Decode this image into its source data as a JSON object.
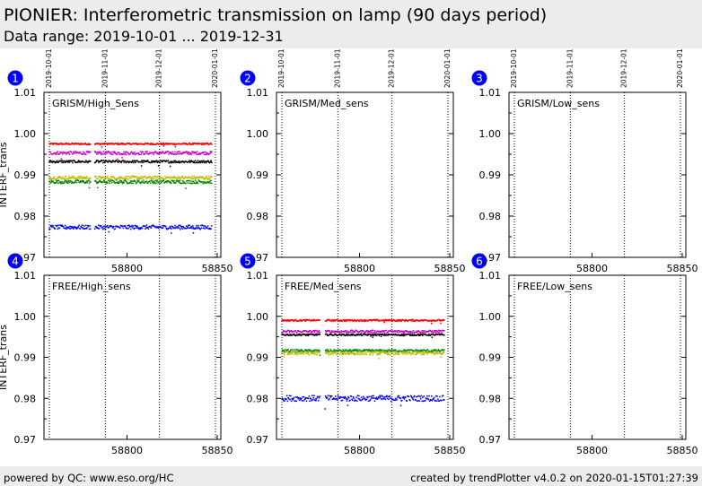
{
  "header": {
    "title": "PIONIER: Interferometric transmission on lamp (90 days period)",
    "subtitle": "Data range: 2019-10-01 ... 2019-12-31"
  },
  "footer": {
    "left": "powered by QC: www.eso.org/HC",
    "right": "created by trendPlotter v4.0.2 on 2020-01-15T01:27:39"
  },
  "colors": {
    "background_band": "#ececec",
    "badge": "#0000ff",
    "red": "#ff0000",
    "magenta": "#cc00cc",
    "black": "#000000",
    "yellow": "#bbbb00",
    "green": "#008800",
    "blue": "#0000ff"
  },
  "chart_data": [
    {
      "panel": "1",
      "type": "scatter",
      "title": "GRISM/High_Sens",
      "ylabel": "INTERF_trans",
      "xlim": [
        58754,
        58852
      ],
      "ylim": [
        0.97,
        1.01
      ],
      "xticks": [
        58800,
        58850
      ],
      "yticks": [
        "0.97",
        "0.98",
        "0.99",
        "1.00",
        "1.01"
      ],
      "date_markers": [
        {
          "mjd": 58757,
          "label": "2019-10-01"
        },
        {
          "mjd": 58788,
          "label": "2019-11-01"
        },
        {
          "mjd": 58818,
          "label": "2019-12-01"
        },
        {
          "mjd": 58849,
          "label": "2020-01-01"
        }
      ],
      "series": [
        {
          "color": "red",
          "x_range": [
            58757,
            58847
          ],
          "level": 0.9975,
          "spread": 0.0002,
          "gaps": [
            [
              58780,
              58782
            ]
          ]
        },
        {
          "color": "magenta",
          "x_range": [
            58757,
            58847
          ],
          "level": 0.9953,
          "spread": 0.0004,
          "gaps": [
            [
              58780,
              58782
            ]
          ]
        },
        {
          "color": "black",
          "x_range": [
            58757,
            58847
          ],
          "level": 0.9932,
          "spread": 0.0003,
          "gaps": [
            [
              58780,
              58782
            ]
          ]
        },
        {
          "color": "yellow",
          "x_range": [
            58757,
            58847
          ],
          "level": 0.9893,
          "spread": 0.0004,
          "gaps": [
            [
              58780,
              58782
            ]
          ]
        },
        {
          "color": "green",
          "x_range": [
            58757,
            58847
          ],
          "level": 0.9883,
          "spread": 0.0004,
          "gaps": [
            [
              58780,
              58782
            ]
          ]
        },
        {
          "color": "blue",
          "x_range": [
            58757,
            58847
          ],
          "level": 0.9773,
          "spread": 0.0005,
          "gaps": [
            [
              58780,
              58782
            ]
          ]
        }
      ]
    },
    {
      "panel": "2",
      "type": "scatter",
      "title": "GRISM/Med_sens",
      "xlim": [
        58754,
        58852
      ],
      "ylim": [
        0.97,
        1.01
      ],
      "xticks": [
        58800,
        58850
      ],
      "yticks": [
        "0.97",
        "0.98",
        "0.99",
        "1.00",
        "1.01"
      ],
      "date_markers": [
        {
          "mjd": 58757,
          "label": "2019-10-01"
        },
        {
          "mjd": 58788,
          "label": "2019-11-01"
        },
        {
          "mjd": 58818,
          "label": "2019-12-01"
        },
        {
          "mjd": 58849,
          "label": "2020-01-01"
        }
      ],
      "series": []
    },
    {
      "panel": "3",
      "type": "scatter",
      "title": "GRISM/Low_sens",
      "xlim": [
        58754,
        58852
      ],
      "ylim": [
        0.97,
        1.01
      ],
      "xticks": [
        58800,
        58850
      ],
      "yticks": [
        "0.97",
        "0.98",
        "0.99",
        "1.00",
        "1.01"
      ],
      "date_markers": [
        {
          "mjd": 58757,
          "label": "2019-10-01"
        },
        {
          "mjd": 58788,
          "label": "2019-11-01"
        },
        {
          "mjd": 58818,
          "label": "2019-12-01"
        },
        {
          "mjd": 58849,
          "label": "2020-01-01"
        }
      ],
      "series": []
    },
    {
      "panel": "4",
      "type": "scatter",
      "title": "FREE/High_sens",
      "ylabel": "INTERF_trans",
      "xlim": [
        58754,
        58852
      ],
      "ylim": [
        0.97,
        1.01
      ],
      "xticks": [
        58800,
        58850
      ],
      "yticks": [
        "0.97",
        "0.98",
        "0.99",
        "1.00",
        "1.01"
      ],
      "date_markers": [
        {
          "mjd": 58757,
          "label": "2019-10-01"
        },
        {
          "mjd": 58788,
          "label": "2019-11-01"
        },
        {
          "mjd": 58818,
          "label": "2019-12-01"
        },
        {
          "mjd": 58849,
          "label": "2020-01-01"
        }
      ],
      "series": []
    },
    {
      "panel": "5",
      "type": "scatter",
      "title": "FREE/Med_sens",
      "xlim": [
        58754,
        58852
      ],
      "ylim": [
        0.97,
        1.01
      ],
      "xticks": [
        58800,
        58850
      ],
      "yticks": [
        "0.97",
        "0.98",
        "0.99",
        "1.00",
        "1.01"
      ],
      "date_markers": [
        {
          "mjd": 58757,
          "label": "2019-10-01"
        },
        {
          "mjd": 58788,
          "label": "2019-11-01"
        },
        {
          "mjd": 58818,
          "label": "2019-12-01"
        },
        {
          "mjd": 58849,
          "label": "2020-01-01"
        }
      ],
      "series": [
        {
          "color": "red",
          "x_range": [
            58757,
            58847
          ],
          "level": 0.999,
          "spread": 0.0002,
          "gaps": [
            [
              58778,
              58781
            ]
          ]
        },
        {
          "color": "magenta",
          "x_range": [
            58757,
            58847
          ],
          "level": 0.9963,
          "spread": 0.0003,
          "gaps": [
            [
              58778,
              58781
            ]
          ]
        },
        {
          "color": "black",
          "x_range": [
            58757,
            58847
          ],
          "level": 0.9955,
          "spread": 0.0002,
          "gaps": [
            [
              58778,
              58781
            ]
          ]
        },
        {
          "color": "green",
          "x_range": [
            58757,
            58847
          ],
          "level": 0.9916,
          "spread": 0.0003,
          "gaps": [
            [
              58778,
              58781
            ]
          ]
        },
        {
          "color": "yellow",
          "x_range": [
            58757,
            58847
          ],
          "level": 0.991,
          "spread": 0.0004,
          "gaps": [
            [
              58778,
              58781
            ]
          ]
        },
        {
          "color": "blue",
          "x_range": [
            58757,
            58847
          ],
          "level": 0.98,
          "spread": 0.0007,
          "gaps": [
            [
              58778,
              58781
            ]
          ]
        }
      ]
    },
    {
      "panel": "6",
      "type": "scatter",
      "title": "FREE/Low_sens",
      "xlim": [
        58754,
        58852
      ],
      "ylim": [
        0.97,
        1.01
      ],
      "xticks": [
        58800,
        58850
      ],
      "yticks": [
        "0.97",
        "0.98",
        "0.99",
        "1.00",
        "1.01"
      ],
      "date_markers": [
        {
          "mjd": 58757,
          "label": "2019-10-01"
        },
        {
          "mjd": 58788,
          "label": "2019-11-01"
        },
        {
          "mjd": 58818,
          "label": "2019-12-01"
        },
        {
          "mjd": 58849,
          "label": "2020-01-01"
        }
      ],
      "series": []
    }
  ]
}
